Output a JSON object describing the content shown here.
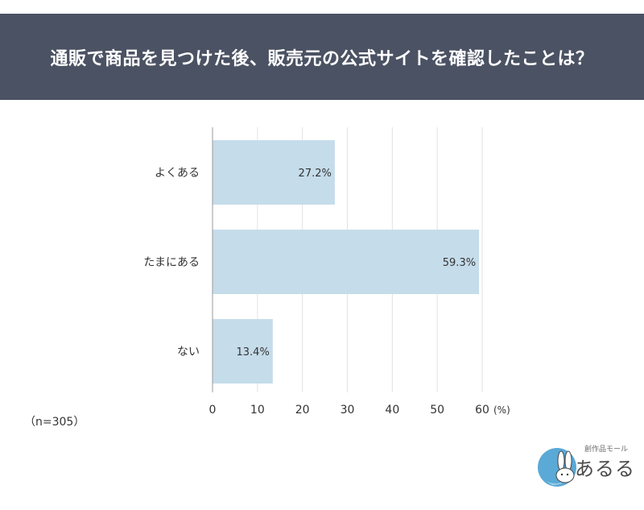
{
  "header": {
    "title": "通販で商品を見つけた後、販売元の公式サイトを確認したことは？"
  },
  "chart_data": {
    "type": "bar",
    "orientation": "horizontal",
    "categories": [
      "よくある",
      "たまにある",
      "ない"
    ],
    "values": [
      27.2,
      59.3,
      13.4
    ],
    "value_labels": [
      "27.2%",
      "59.3%",
      "13.4%"
    ],
    "xlim": [
      0,
      60
    ],
    "xticks": [
      "0",
      "10",
      "20",
      "30",
      "40",
      "50",
      "60"
    ],
    "xunit": "(%)",
    "grid": true,
    "bar_color": "#c5dcea"
  },
  "footnote": "（n=305）",
  "logo": {
    "tagline": "創作品モール",
    "wordmark": "あるる"
  }
}
